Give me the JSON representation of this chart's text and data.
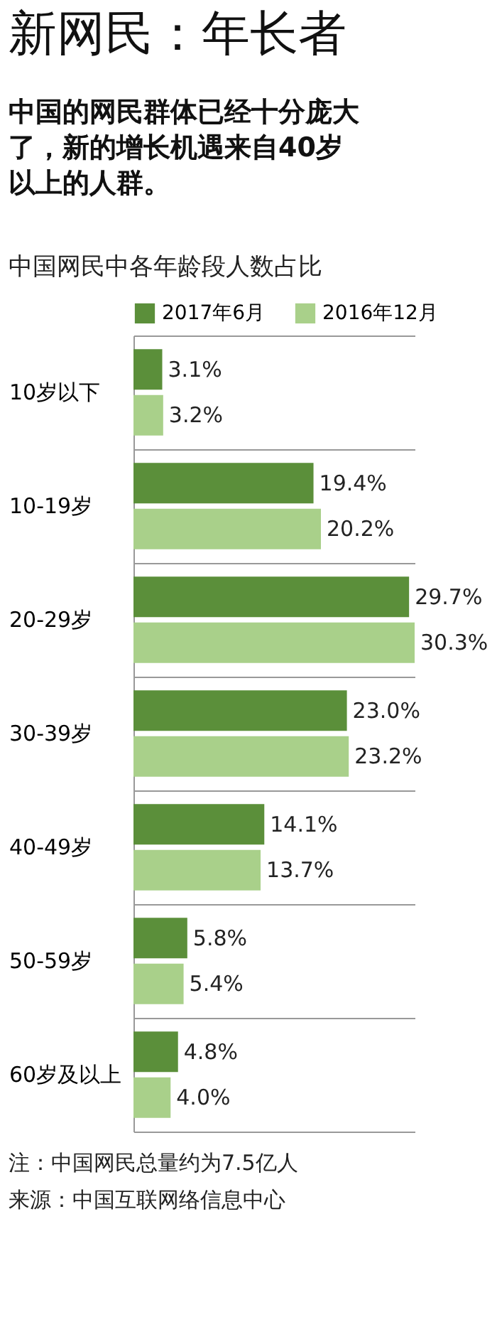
{
  "chart_data": {
    "type": "bar",
    "orientation": "horizontal",
    "title": "新网民：年长者",
    "subtitle": "中国的网民群体已经十分庞大了，新的增长机遇来自40岁以上的人群。",
    "annotations": [
      "中国网民中各年龄段人数占比",
      "注：中国网民总量约为7.5亿人",
      "来源：中国互联网络信息中心"
    ],
    "categories": [
      "10岁以下",
      "10-19岁",
      "20-29岁",
      "30-39岁",
      "40-49岁",
      "50-59岁",
      "60岁及以上"
    ],
    "series": [
      {
        "name": "2017年6月",
        "color": "#5b8f3a",
        "values": [
          3.1,
          19.4,
          29.7,
          23.0,
          14.1,
          5.8,
          4.8
        ],
        "value_labels": [
          "3.1%",
          "19.4%",
          "29.7%",
          "23.0%",
          "14.1%",
          "5.8%",
          "4.8%"
        ]
      },
      {
        "name": "2016年12月",
        "color": "#a9d08a",
        "values": [
          3.2,
          20.2,
          30.3,
          23.2,
          13.7,
          5.4,
          4.0
        ],
        "value_labels": [
          "3.2%",
          "20.2%",
          "30.3%",
          "23.2%",
          "13.7%",
          "5.4%",
          "4.0%"
        ]
      }
    ],
    "legend": "top",
    "grid": "y"
  }
}
